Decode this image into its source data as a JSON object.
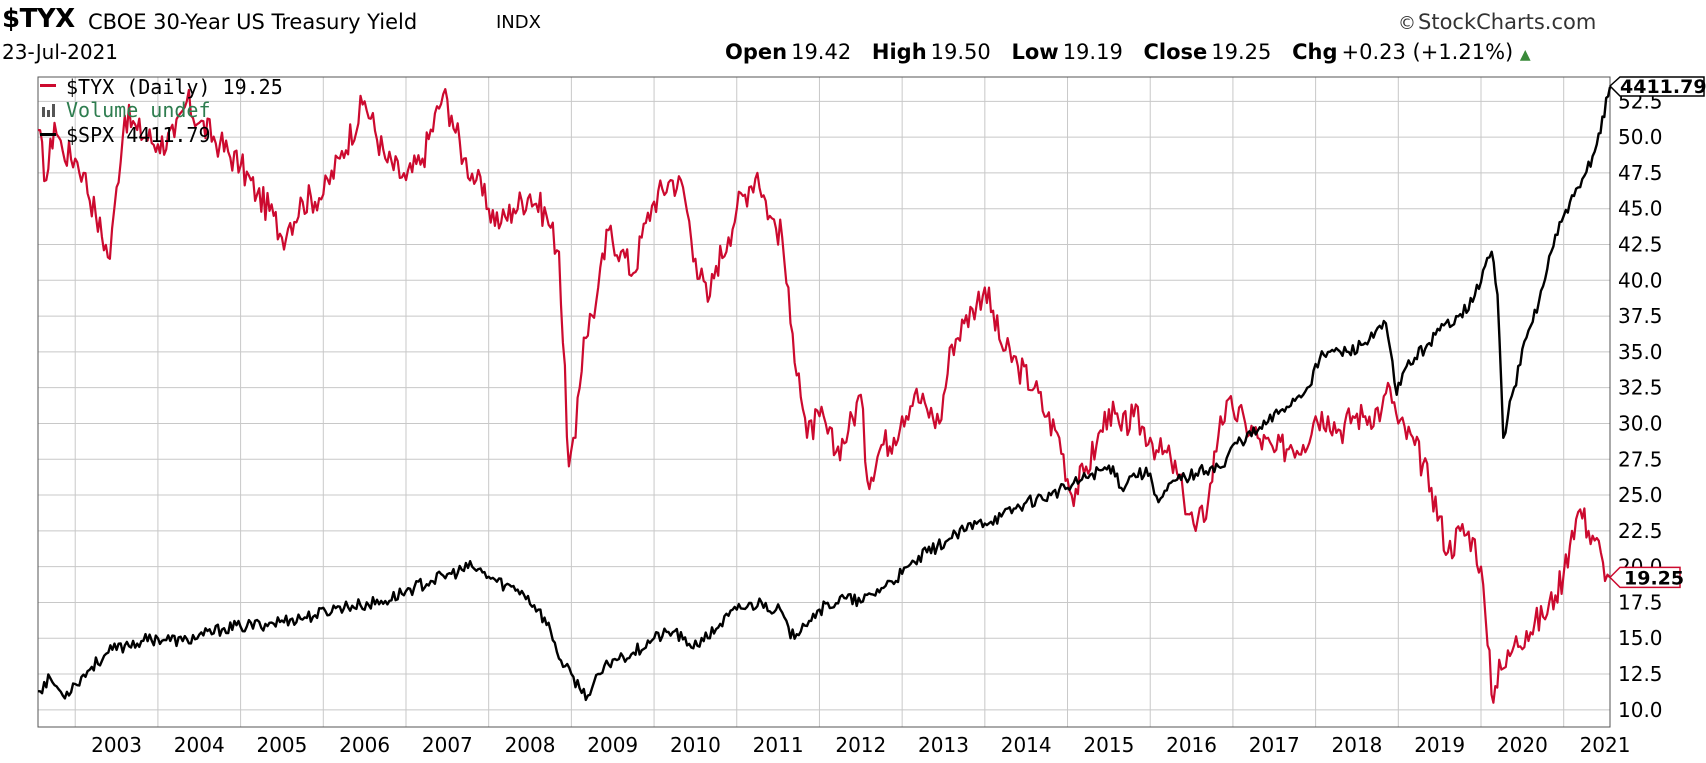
{
  "header": {
    "symbol": "$TYX",
    "description": "CBOE 30-Year US Treasury Yield",
    "exchange": "INDX",
    "brand": "StockCharts.com",
    "date": "23-Jul-2021",
    "open_label": "Open",
    "open": "19.42",
    "high_label": "High",
    "high": "19.50",
    "low_label": "Low",
    "low": "19.19",
    "close_label": "Close",
    "close": "19.25",
    "chg_label": "Chg",
    "chg": "+0.23 (+1.21%)"
  },
  "legend": {
    "tyx": "$TYX (Daily) 19.25",
    "volume": "Volume undef",
    "spx": "$SPX 4411.79"
  },
  "colors": {
    "tyx": "#cc0a2f",
    "spx": "#000000",
    "grid": "#c8c8c8",
    "volume": "#2e7d4f"
  },
  "chart_data": {
    "type": "line",
    "x_ticks": [
      "2003",
      "2004",
      "2005",
      "2006",
      "2007",
      "2008",
      "2009",
      "2010",
      "2011",
      "2012",
      "2013",
      "2014",
      "2015",
      "2016",
      "2017",
      "2018",
      "2019",
      "2020",
      "2021"
    ],
    "y_ticks": [
      "10.0",
      "12.5",
      "15.0",
      "17.5",
      "20.0",
      "22.5",
      "25.0",
      "27.5",
      "30.0",
      "32.5",
      "35.0",
      "37.5",
      "40.0",
      "42.5",
      "45.0",
      "47.5",
      "50.0",
      "52.5"
    ],
    "ylim": [
      8.8,
      54.2
    ],
    "xlim": [
      2002.55,
      2021.56
    ],
    "grid": true,
    "last_tyx": "19.25",
    "last_spx": "4411.79",
    "series": [
      {
        "name": "$TYX (Daily)",
        "x": [
          2002.55,
          2002.65,
          2002.75,
          2002.85,
          2003.0,
          2003.1,
          2003.25,
          2003.42,
          2003.5,
          2003.6,
          2003.75,
          2004.0,
          2004.2,
          2004.35,
          2004.5,
          2004.75,
          2005.0,
          2005.2,
          2005.4,
          2005.5,
          2005.6,
          2005.75,
          2006.0,
          2006.2,
          2006.5,
          2006.75,
          2007.0,
          2007.2,
          2007.45,
          2007.55,
          2007.7,
          2007.85,
          2008.0,
          2008.15,
          2008.3,
          2008.5,
          2008.7,
          2008.85,
          2008.97,
          2009.05,
          2009.15,
          2009.3,
          2009.45,
          2009.6,
          2009.75,
          2009.9,
          2010.0,
          2010.2,
          2010.35,
          2010.5,
          2010.65,
          2010.75,
          2010.9,
          2011.0,
          2011.15,
          2011.25,
          2011.4,
          2011.55,
          2011.65,
          2011.75,
          2011.85,
          2012.0,
          2012.2,
          2012.35,
          2012.5,
          2012.58,
          2012.75,
          2012.9,
          2013.0,
          2013.15,
          2013.3,
          2013.45,
          2013.6,
          2013.75,
          2013.85,
          2014.0,
          2014.2,
          2014.4,
          2014.6,
          2014.75,
          2014.9,
          2015.05,
          2015.2,
          2015.35,
          2015.5,
          2015.65,
          2015.8,
          2016.0,
          2016.1,
          2016.25,
          2016.4,
          2016.55,
          2016.7,
          2016.85,
          2017.0,
          2017.15,
          2017.3,
          2017.5,
          2017.7,
          2017.85,
          2018.0,
          2018.15,
          2018.3,
          2018.45,
          2018.6,
          2018.8,
          2018.9,
          2019.0,
          2019.2,
          2019.4,
          2019.6,
          2019.75,
          2019.9,
          2020.0,
          2020.08,
          2020.15,
          2020.22,
          2020.3,
          2020.4,
          2020.55,
          2020.75,
          2020.9,
          2021.0,
          2021.1,
          2021.2,
          2021.3,
          2021.4,
          2021.5,
          2021.56
        ],
        "y": [
          50.5,
          47.0,
          51.0,
          49.0,
          48.5,
          47.5,
          44.5,
          41.5,
          46.5,
          51.5,
          50.5,
          49.5,
          50.0,
          52.5,
          51.0,
          49.5,
          48.0,
          46.0,
          44.5,
          43.0,
          44.0,
          45.5,
          46.0,
          48.5,
          52.5,
          48.5,
          47.0,
          48.5,
          53.0,
          51.5,
          48.5,
          47.0,
          45.0,
          44.0,
          45.0,
          46.0,
          44.5,
          42.0,
          27.0,
          29.0,
          36.0,
          38.5,
          43.5,
          42.0,
          40.5,
          44.0,
          45.5,
          47.0,
          46.5,
          41.5,
          38.5,
          41.0,
          43.0,
          45.0,
          46.5,
          47.5,
          44.5,
          43.0,
          37.0,
          33.5,
          29.0,
          30.5,
          28.0,
          29.5,
          32.0,
          26.0,
          28.5,
          29.0,
          30.5,
          32.0,
          31.0,
          30.0,
          35.5,
          37.0,
          38.0,
          39.5,
          35.5,
          34.0,
          32.5,
          30.5,
          29.0,
          25.0,
          26.5,
          28.5,
          31.0,
          29.5,
          30.5,
          29.0,
          28.0,
          27.5,
          25.0,
          22.5,
          24.5,
          30.5,
          31.0,
          30.0,
          29.0,
          28.0,
          28.5,
          28.5,
          30.5,
          30.5,
          29.5,
          30.5,
          30.5,
          31.0,
          32.5,
          30.0,
          28.5,
          25.5,
          21.0,
          22.5,
          22.0,
          20.0,
          14.5,
          10.5,
          13.5,
          13.0,
          14.5,
          15.5,
          16.5,
          18.0,
          19.5,
          22.5,
          24.0,
          22.5,
          22.0,
          19.0,
          19.25
        ]
      },
      {
        "name": "$SPX",
        "x": [
          2002.55,
          2002.7,
          2002.85,
          2003.0,
          2003.2,
          2003.4,
          2003.6,
          2003.8,
          2004.0,
          2004.3,
          2004.55,
          2004.8,
          2005.0,
          2005.3,
          2005.6,
          2005.9,
          2006.2,
          2006.45,
          2006.75,
          2007.0,
          2007.3,
          2007.55,
          2007.8,
          2008.0,
          2008.2,
          2008.4,
          2008.6,
          2008.75,
          2008.9,
          2009.0,
          2009.1,
          2009.2,
          2009.35,
          2009.5,
          2009.75,
          2010.0,
          2010.25,
          2010.4,
          2010.6,
          2010.8,
          2011.0,
          2011.3,
          2011.55,
          2011.65,
          2011.8,
          2012.0,
          2012.3,
          2012.5,
          2012.75,
          2013.0,
          2013.3,
          2013.6,
          2013.9,
          2014.2,
          2014.5,
          2014.8,
          2015.0,
          2015.3,
          2015.55,
          2015.65,
          2015.8,
          2016.0,
          2016.1,
          2016.3,
          2016.55,
          2016.75,
          2016.9,
          2017.0,
          2017.3,
          2017.6,
          2017.9,
          2018.05,
          2018.15,
          2018.4,
          2018.7,
          2018.85,
          2018.98,
          2019.1,
          2019.35,
          2019.5,
          2019.7,
          2019.9,
          2020.05,
          2020.13,
          2020.2,
          2020.27,
          2020.4,
          2020.55,
          2020.7,
          2020.85,
          2021.0,
          2021.2,
          2021.4,
          2021.56
        ],
        "y": [
          11.3,
          12.2,
          11.0,
          11.8,
          13.0,
          14.0,
          14.5,
          14.8,
          15.0,
          14.8,
          15.2,
          15.7,
          15.8,
          16.0,
          16.3,
          16.6,
          17.2,
          17.3,
          17.6,
          18.3,
          19.0,
          19.5,
          20.0,
          19.3,
          18.7,
          18.3,
          17.0,
          15.5,
          13.0,
          12.5,
          11.5,
          11.0,
          12.5,
          13.5,
          14.0,
          15.0,
          15.5,
          14.5,
          14.8,
          16.0,
          17.0,
          17.5,
          16.8,
          15.0,
          16.0,
          17.0,
          17.8,
          17.5,
          18.5,
          19.5,
          21.0,
          22.0,
          23.0,
          23.5,
          24.5,
          25.0,
          25.5,
          26.5,
          27.0,
          25.5,
          26.5,
          26.5,
          24.5,
          26.0,
          26.5,
          27.0,
          27.0,
          28.5,
          29.5,
          31.0,
          32.5,
          34.5,
          35.0,
          35.0,
          36.0,
          37.0,
          32.0,
          34.0,
          35.5,
          36.5,
          37.5,
          38.5,
          41.0,
          42.0,
          39.0,
          29.0,
          32.5,
          36.0,
          38.5,
          42.0,
          44.5,
          46.5,
          49.5,
          53.5
        ]
      }
    ]
  }
}
